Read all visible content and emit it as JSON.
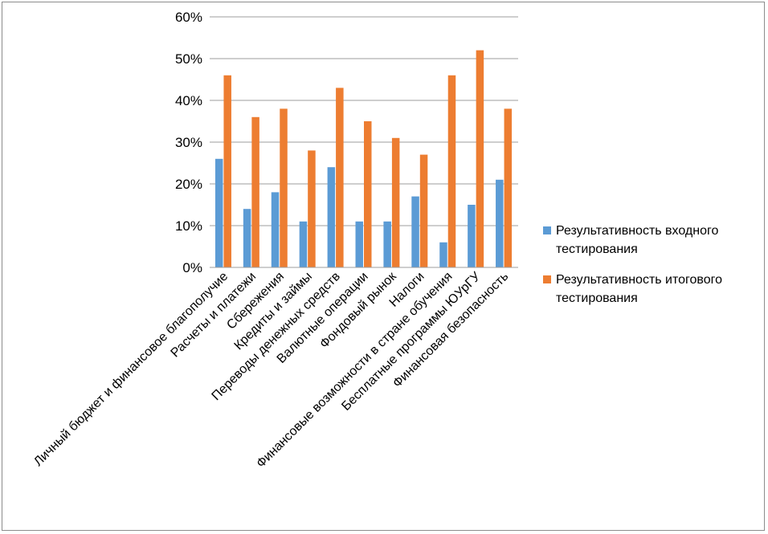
{
  "chart_data": {
    "type": "bar",
    "title": "",
    "xlabel": "",
    "ylabel": "",
    "ylim": [
      0,
      60
    ],
    "y_ticks": [
      0,
      10,
      20,
      30,
      40,
      50,
      60
    ],
    "y_tick_labels": [
      "0%",
      "10%",
      "20%",
      "30%",
      "40%",
      "50%",
      "60%"
    ],
    "grid": true,
    "legend_position": "right",
    "categories": [
      "Личный бюджет и финансовое благополучие",
      "Расчеты и платежи",
      "Сбережения",
      "Кредиты и займы",
      "Переводы денежных средств",
      "Валютные операции",
      "Фондовый рынок",
      "Налоги",
      "Финансовые возможности в стране обучения",
      "Бесплатные программы ЮУрГУ",
      "Финансовая безопасность"
    ],
    "series": [
      {
        "name": "Результативность входного тестирования",
        "color": "#5B9BD5",
        "values": [
          26,
          14,
          18,
          11,
          24,
          11,
          11,
          17,
          6,
          15,
          21
        ]
      },
      {
        "name": "Результативность итогового тестирования",
        "color": "#ED7D31",
        "values": [
          46,
          36,
          38,
          28,
          43,
          35,
          31,
          27,
          46,
          52,
          38
        ]
      }
    ]
  }
}
